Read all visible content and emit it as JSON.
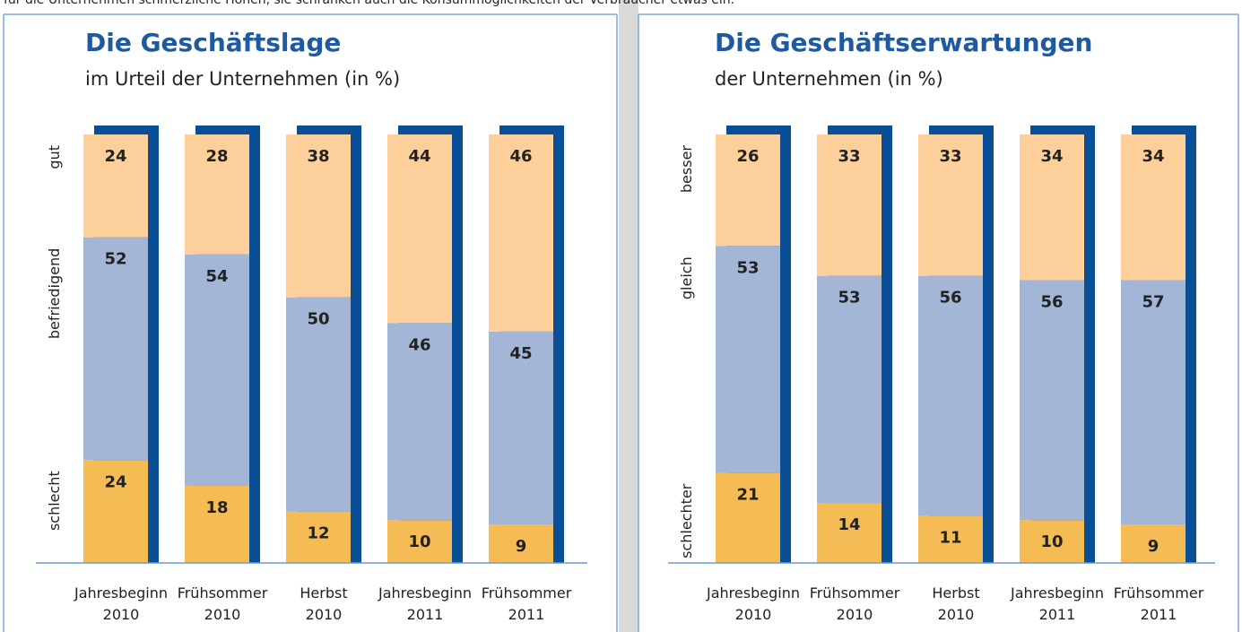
{
  "intro": "für die Unternehmen schmerzliche Höhen, sie schränken auch die Konsummöglichkeiten der Verbraucher etwas ein.",
  "chart_data": [
    {
      "type": "stacked_bar",
      "title": "Die Geschäftslage",
      "subtitle": "im Urteil der Unternehmen (in %)",
      "categories": [
        [
          "Jahresbeginn",
          "2010"
        ],
        [
          "Frühsommer",
          "2010"
        ],
        [
          "Herbst",
          "2010"
        ],
        [
          "Jahresbeginn",
          "2011"
        ],
        [
          "Frühsommer",
          "2011"
        ]
      ],
      "ylim": [
        0,
        100
      ],
      "series": [
        {
          "name": "schlecht",
          "color": "#f5bb55",
          "values": [
            24,
            18,
            12,
            10,
            9
          ]
        },
        {
          "name": "befriedigend",
          "color": "#a3b6d6",
          "values": [
            52,
            54,
            50,
            46,
            45
          ]
        },
        {
          "name": "gut",
          "color": "#fdcf9a",
          "values": [
            24,
            28,
            38,
            44,
            46
          ]
        }
      ]
    },
    {
      "type": "stacked_bar",
      "title": "Die Geschäftserwartungen",
      "subtitle": "der Unternehmen (in %)",
      "categories": [
        [
          "Jahresbeginn",
          "2010"
        ],
        [
          "Frühsommer",
          "2010"
        ],
        [
          "Herbst",
          "2010"
        ],
        [
          "Jahresbeginn",
          "2011"
        ],
        [
          "Frühsommer",
          "2011"
        ]
      ],
      "ylim": [
        0,
        100
      ],
      "series": [
        {
          "name": "schlechter",
          "color": "#f5bb55",
          "values": [
            21,
            14,
            11,
            10,
            9
          ]
        },
        {
          "name": "gleich",
          "color": "#a3b6d6",
          "values": [
            53,
            53,
            56,
            56,
            57
          ]
        },
        {
          "name": "besser",
          "color": "#fdcf9a",
          "values": [
            26,
            33,
            33,
            34,
            34
          ]
        }
      ]
    }
  ]
}
